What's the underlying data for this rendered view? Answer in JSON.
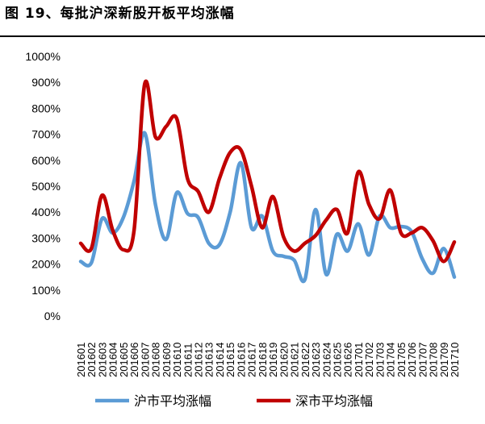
{
  "title": "图 19、每批沪深新股开板平均涨幅",
  "chart_data": {
    "type": "line",
    "title": "",
    "xlabel": "",
    "ylabel": "",
    "ylim": [
      0,
      1000
    ],
    "y_ticks": [
      "0%",
      "100%",
      "200%",
      "300%",
      "400%",
      "500%",
      "600%",
      "700%",
      "800%",
      "900%",
      "1000%"
    ],
    "grid": false,
    "legend_position": "bottom",
    "categories": [
      "201601",
      "201602",
      "201603",
      "201604",
      "201605",
      "201606",
      "201607",
      "201608",
      "201609",
      "201610",
      "201611",
      "201612",
      "201613",
      "201614",
      "201615",
      "201616",
      "201617",
      "201618",
      "201619",
      "201620",
      "201621",
      "201622",
      "201623",
      "201624",
      "201625",
      "201626",
      "201701",
      "201702",
      "201703",
      "201704",
      "201705",
      "201706",
      "201707",
      "201708",
      "201709",
      "201710"
    ],
    "series": [
      {
        "name": "沪市平均涨幅",
        "color": "#5B9BD5",
        "values": [
          210,
          205,
          375,
          320,
          380,
          520,
          705,
          430,
          295,
          475,
          395,
          380,
          280,
          275,
          400,
          590,
          340,
          385,
          250,
          230,
          215,
          140,
          410,
          160,
          315,
          250,
          355,
          235,
          385,
          340,
          345,
          325,
          220,
          165,
          260,
          150
        ]
      },
      {
        "name": "深市平均涨幅",
        "color": "#C00000",
        "values": [
          280,
          260,
          465,
          330,
          255,
          330,
          895,
          690,
          730,
          760,
          530,
          480,
          400,
          530,
          630,
          640,
          500,
          340,
          460,
          305,
          250,
          280,
          310,
          370,
          410,
          320,
          555,
          430,
          375,
          485,
          320,
          320,
          340,
          290,
          210,
          285
        ]
      }
    ]
  }
}
